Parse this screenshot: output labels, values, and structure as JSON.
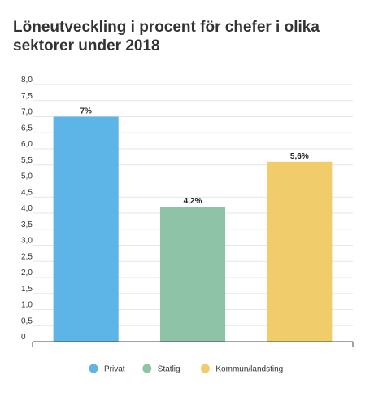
{
  "chart_data": {
    "type": "bar",
    "title": "Löneutveckling i procent för chefer i olika sektorer under 2018",
    "categories": [
      "Privat",
      "Statlig",
      "Kommun/landsting"
    ],
    "values": [
      7.0,
      4.2,
      5.6
    ],
    "data_labels": [
      "7%",
      "4,2%",
      "5,6%"
    ],
    "colors": [
      "#5db4e6",
      "#8ec3a7",
      "#f0cc6b"
    ],
    "xlabel": "",
    "ylabel": "",
    "ylim": [
      0,
      8
    ],
    "yticks": [
      "0",
      "0,5",
      "1,0",
      "1,5",
      "2,0",
      "2,5",
      "3,0",
      "3,5",
      "4,0",
      "4,5",
      "5,0",
      "5,5",
      "6,0",
      "6,5",
      "7,0",
      "7,5",
      "8,0"
    ],
    "grid": true,
    "legend_position": "bottom-center"
  }
}
